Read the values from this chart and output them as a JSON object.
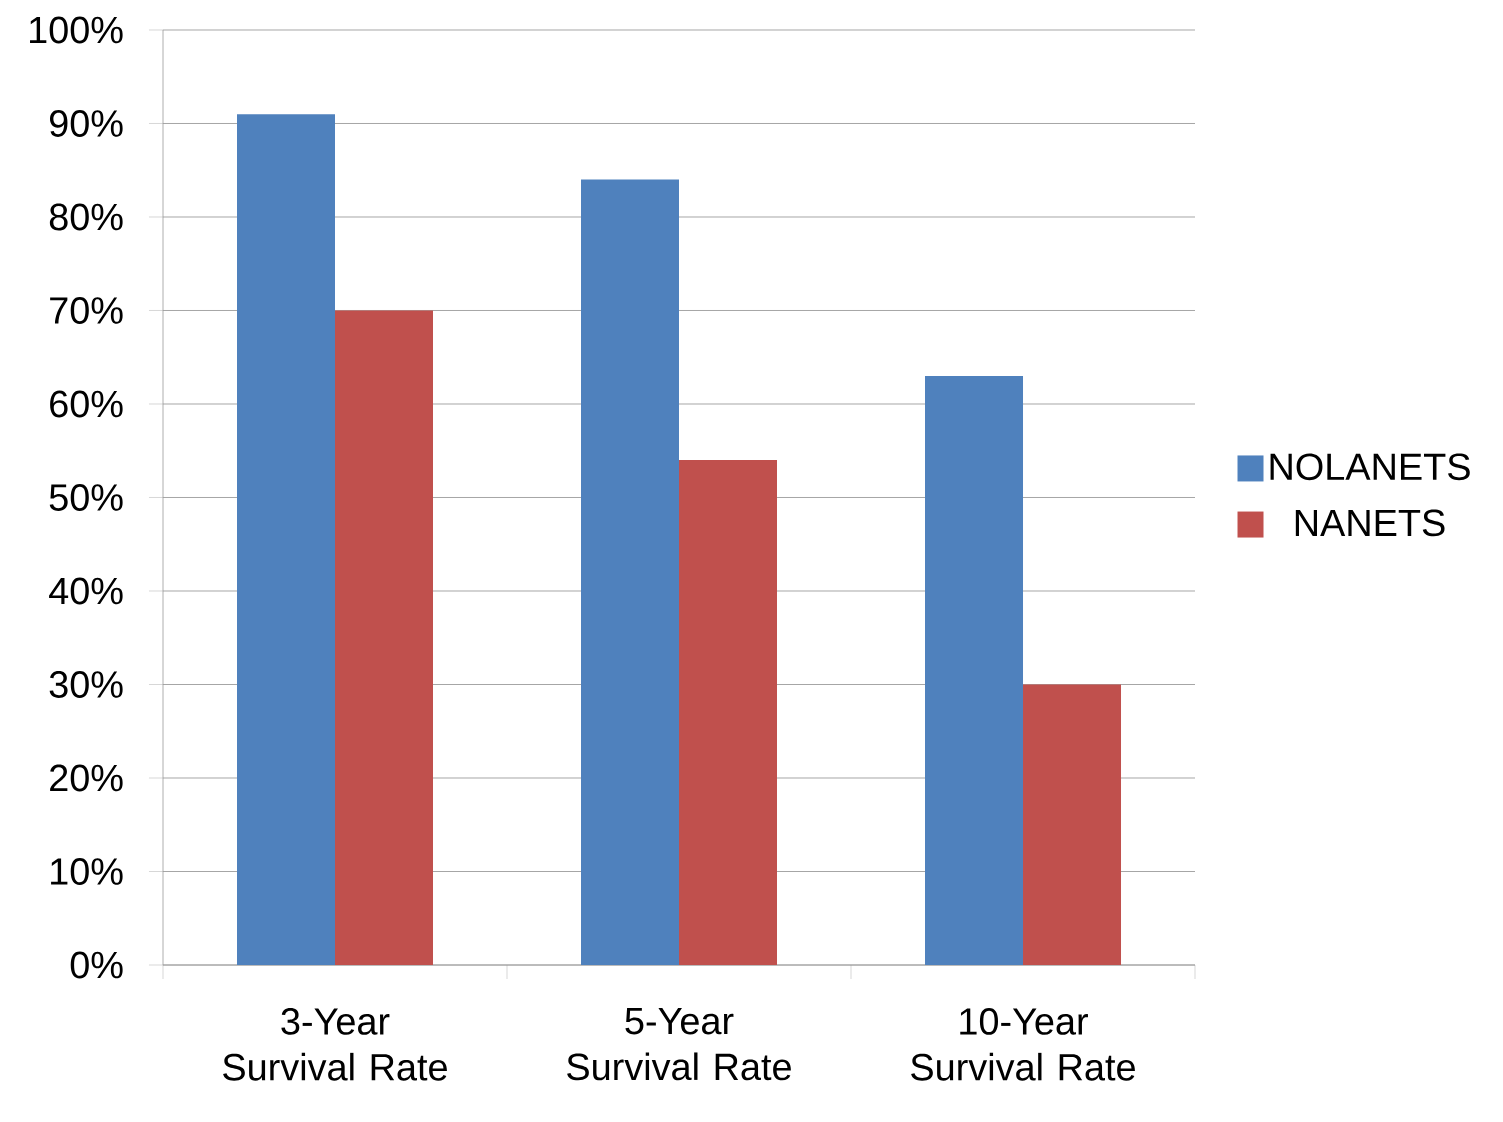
{
  "chart_data": {
    "type": "bar",
    "categories": [
      "3-Year Survival Rate",
      "5-Year Survival Rate",
      "10-Year Survival Rate"
    ],
    "series": [
      {
        "name": "NOLANETS",
        "color": "#4f81bd",
        "values": [
          91,
          84,
          63
        ]
      },
      {
        "name": "NANETS",
        "color": "#c0504d",
        "values": [
          70,
          54,
          30
        ]
      }
    ],
    "ylim": [
      0,
      100
    ],
    "yticks": [
      {
        "value": 0,
        "label": "0%"
      },
      {
        "value": 10,
        "label": "10%"
      },
      {
        "value": 20,
        "label": "20%"
      },
      {
        "value": 30,
        "label": "30%"
      },
      {
        "value": 40,
        "label": "40%"
      },
      {
        "value": 50,
        "label": "50%"
      },
      {
        "value": 60,
        "label": "60%"
      },
      {
        "value": 70,
        "label": "70%"
      },
      {
        "value": 80,
        "label": "80%"
      },
      {
        "value": 90,
        "label": "90%"
      },
      {
        "value": 100,
        "label": "100%"
      }
    ],
    "grid": "y",
    "legend": "right"
  }
}
